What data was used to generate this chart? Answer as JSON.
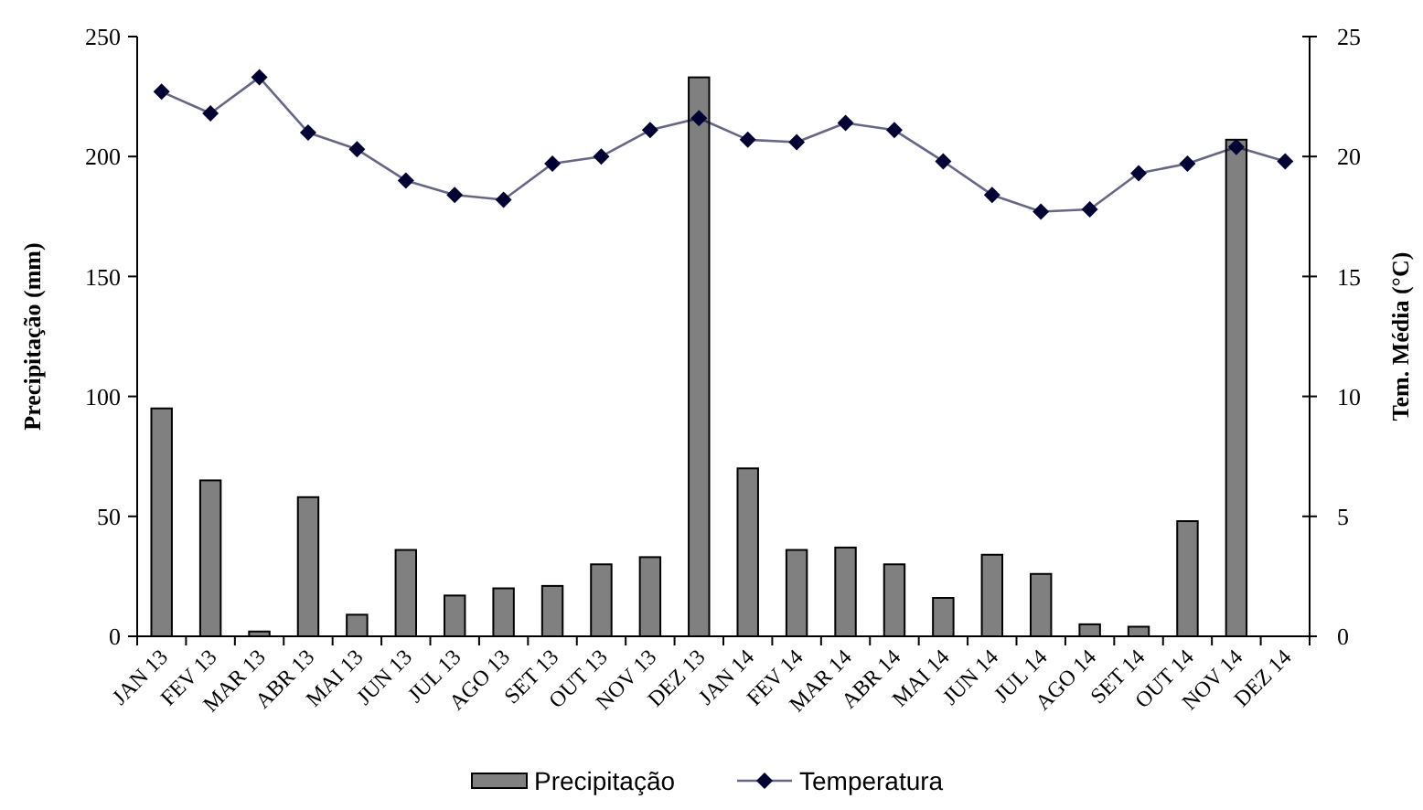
{
  "chart_data": {
    "type": "bar",
    "ylabel": "Precipitação (mm)",
    "y2label": "Tem. Média (°C)",
    "categories": [
      "JAN 13",
      "FEV 13",
      "MAR 13",
      "ABR 13",
      "MAI 13",
      "JUN 13",
      "JUL 13",
      "AGO 13",
      "SET 13",
      "OUT 13",
      "NOV 13",
      "DEZ 13",
      "JAN 14",
      "FEV 14",
      "MAR 14",
      "ABR 14",
      "MAI 14",
      "JUN 14",
      "JUL 14",
      "AGO 14",
      "SET 14",
      "OUT 14",
      "NOV 14",
      "DEZ 14"
    ],
    "series": [
      {
        "name": "Precipitação",
        "color": "#808080",
        "values": [
          95,
          65,
          2,
          58,
          9,
          36,
          17,
          20,
          21,
          30,
          33,
          233,
          70,
          36,
          37,
          30,
          16,
          34,
          26,
          5,
          4,
          48,
          207,
          null
        ]
      },
      {
        "name": "Temperatura",
        "type": "line",
        "axis": "y2",
        "color": "#000033",
        "marker": "diamond",
        "values": [
          22.7,
          21.8,
          23.3,
          21.0,
          20.3,
          19.0,
          18.4,
          18.2,
          19.7,
          20.0,
          21.1,
          21.6,
          20.7,
          20.6,
          21.4,
          21.1,
          19.8,
          18.4,
          17.7,
          17.8,
          19.3,
          19.7,
          20.4,
          19.8
        ]
      }
    ],
    "ylim": [
      0,
      250
    ],
    "yticks": [
      0,
      50,
      100,
      150,
      200,
      250
    ],
    "y2lim": [
      0,
      25
    ],
    "y2ticks": [
      0,
      5,
      10,
      15,
      20,
      25
    ],
    "grid": false,
    "legend": "bottom"
  }
}
